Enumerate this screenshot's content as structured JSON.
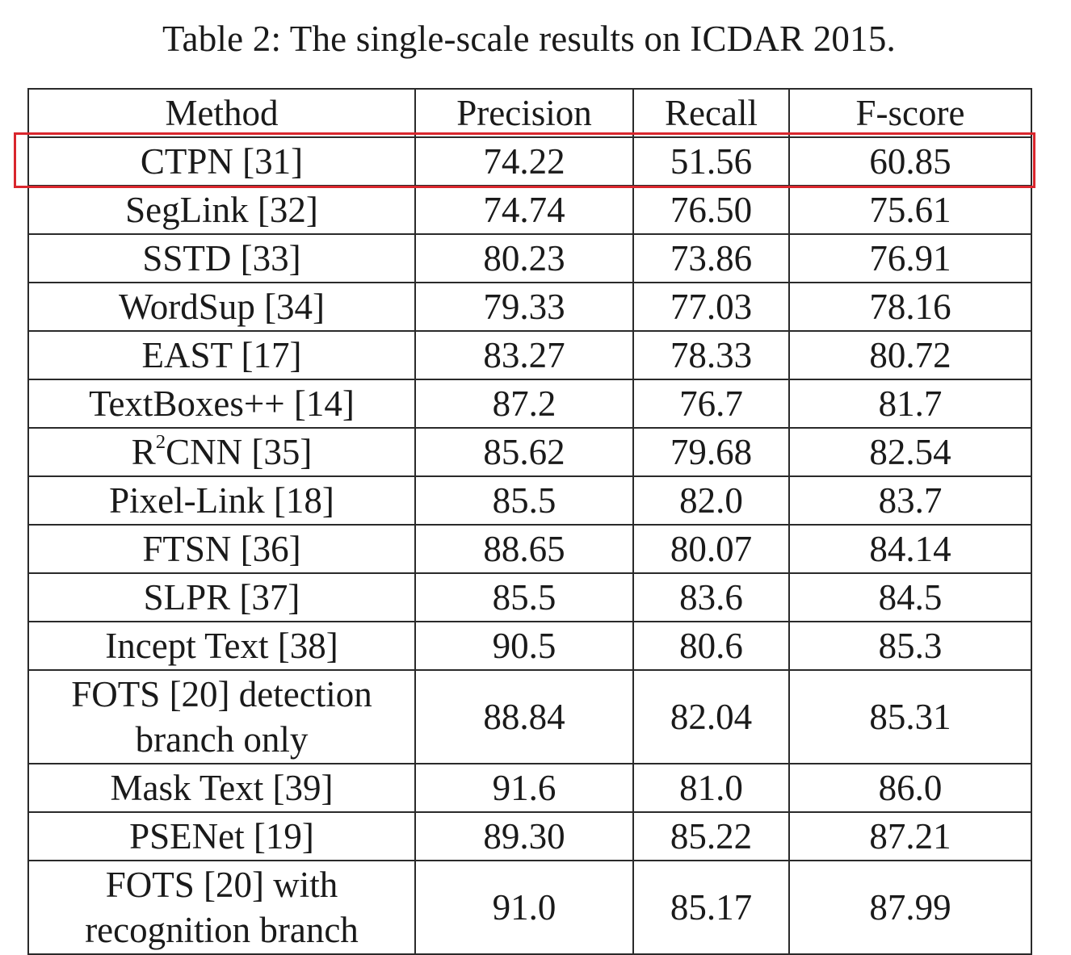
{
  "caption": "Table 2: The single-scale results on ICDAR 2015.",
  "columns": [
    "Method",
    "Precision",
    "Recall",
    "F-score"
  ],
  "rows": [
    {
      "method": "CTPN [31]",
      "precision": "74.22",
      "recall": "51.56",
      "fscore": "60.85",
      "highlighted": true
    },
    {
      "method": "SegLink [32]",
      "precision": "74.74",
      "recall": "76.50",
      "fscore": "75.61"
    },
    {
      "method": "SSTD [33]",
      "precision": "80.23",
      "recall": "73.86",
      "fscore": "76.91"
    },
    {
      "method": "WordSup [34]",
      "precision": "79.33",
      "recall": "77.03",
      "fscore": "78.16"
    },
    {
      "method": "EAST [17]",
      "precision": "83.27",
      "recall": "78.33",
      "fscore": "80.72"
    },
    {
      "method": "TextBoxes++ [14]",
      "precision": "87.2",
      "recall": "76.7",
      "fscore": "81.7"
    },
    {
      "method_base": "R",
      "method_sup": "2",
      "method_rest": "CNN [35]",
      "precision": "85.62",
      "recall": "79.68",
      "fscore": "82.54"
    },
    {
      "method": "Pixel-Link [18]",
      "precision": "85.5",
      "recall": "82.0",
      "fscore": "83.7"
    },
    {
      "method": "FTSN [36]",
      "precision": "88.65",
      "recall": "80.07",
      "fscore": "84.14"
    },
    {
      "method": "SLPR [37]",
      "precision": "85.5",
      "recall": "83.6",
      "fscore": "84.5"
    },
    {
      "method": "Incept Text [38]",
      "precision": "90.5",
      "recall": "80.6",
      "fscore": "85.3"
    },
    {
      "method_line1": "FOTS [20] detection",
      "method_line2": "branch only",
      "precision": "88.84",
      "recall": "82.04",
      "fscore": "85.31"
    },
    {
      "method": "Mask Text [39]",
      "precision": "91.6",
      "recall": "81.0",
      "fscore": "86.0"
    },
    {
      "method": "PSENet [19]",
      "precision": "89.30",
      "recall": "85.22",
      "fscore": "87.21"
    },
    {
      "method_line1": "FOTS [20] with",
      "method_line2": "recognition branch",
      "precision": "91.0",
      "recall": "85.17",
      "fscore": "87.99"
    }
  ],
  "highlight_color": "#d9262d"
}
